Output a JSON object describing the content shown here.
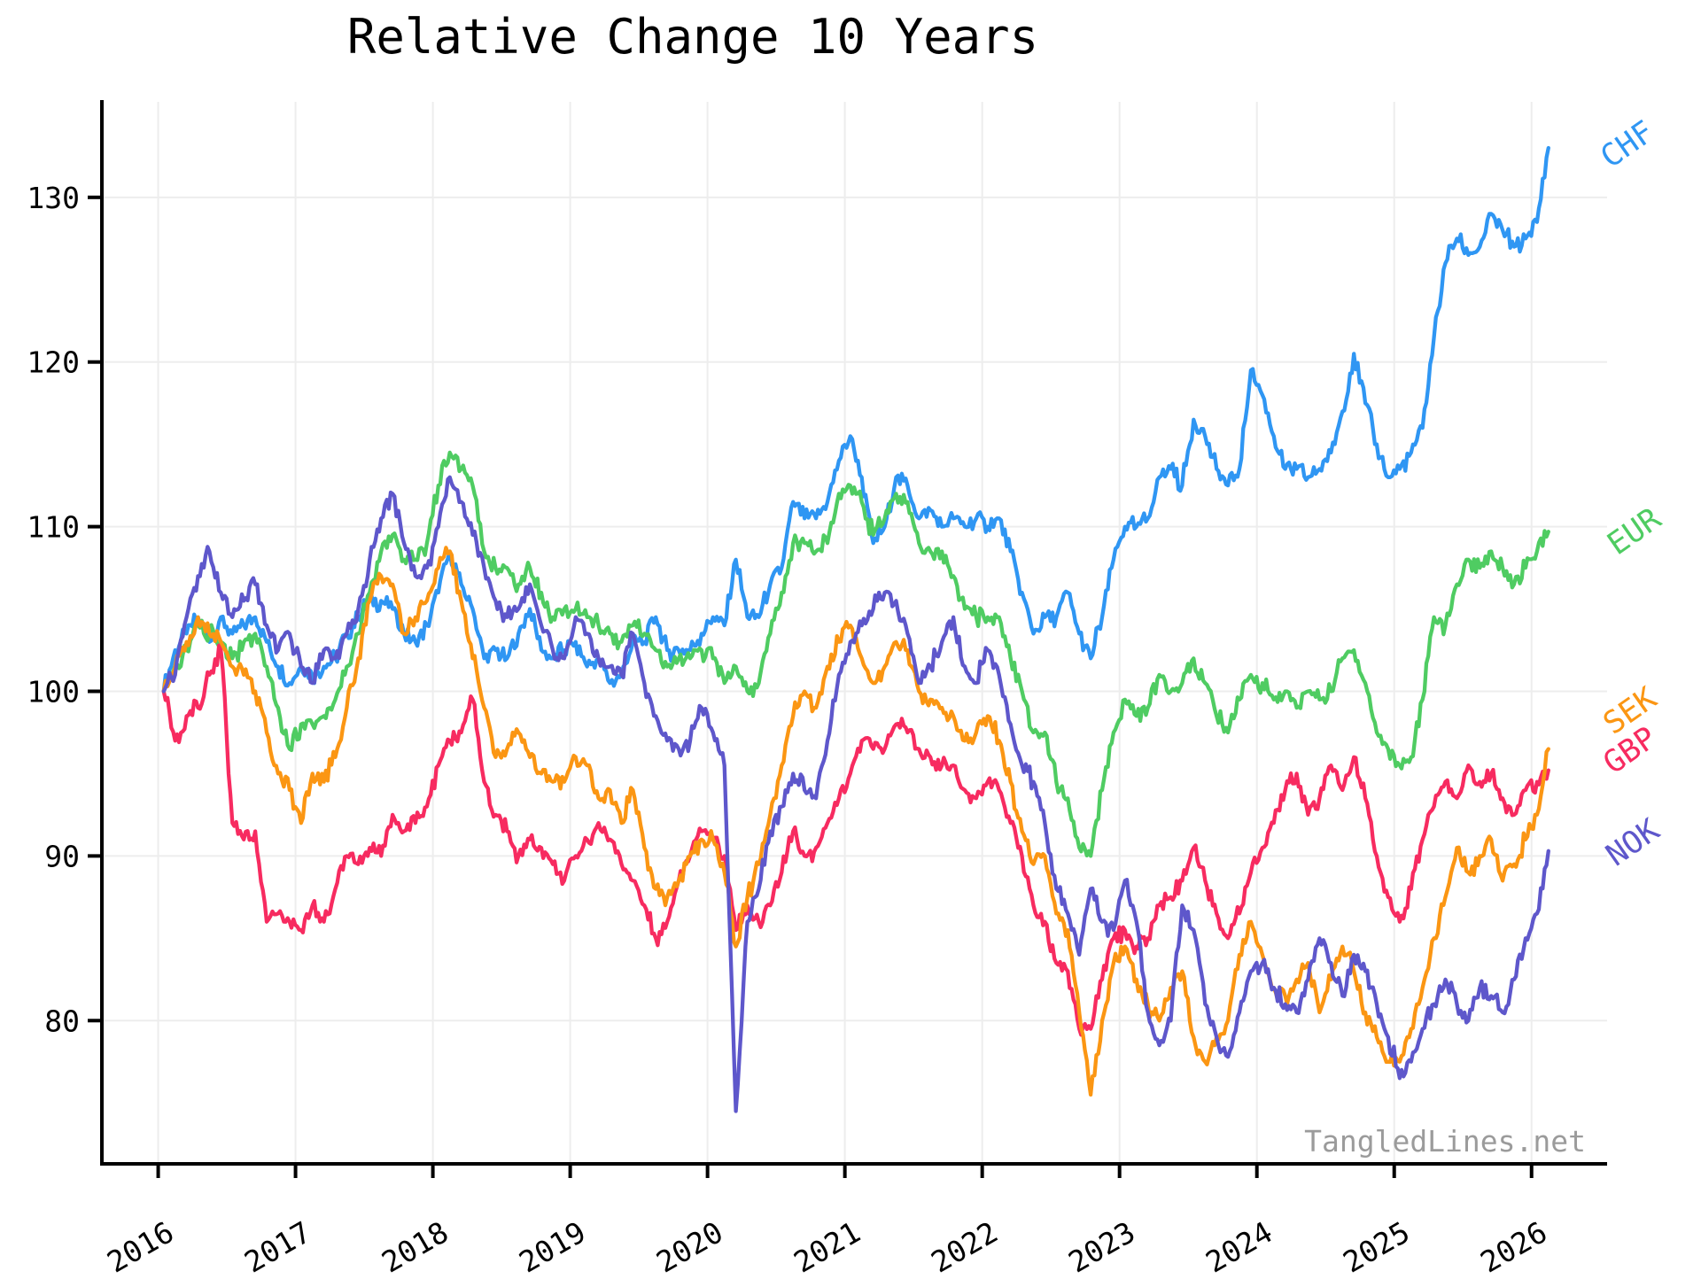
{
  "title": "Relative Change 10 Years",
  "watermark": "TangledLines.net",
  "chart_data": {
    "type": "line",
    "title": "Relative Change 10 Years",
    "xlabel": "",
    "ylabel": "",
    "x_start": 2016.04,
    "x_step": 0.08333,
    "x_ticks": [
      2016,
      2017,
      2018,
      2019,
      2020,
      2021,
      2022,
      2023,
      2024,
      2025,
      2026
    ],
    "y_ticks": [
      80,
      90,
      100,
      110,
      120,
      130
    ],
    "xlim": [
      2015.59,
      2026.55
    ],
    "ylim": [
      71.3,
      135.8
    ],
    "grid": true,
    "grid_color": "#ededed",
    "axis_color": "#000000",
    "legend_position": "right-edge-labels",
    "noise_amplitude": 0.7,
    "series": [
      {
        "name": "CHF",
        "color": "#2f96f3",
        "label_x": 2026.74,
        "label_y": 132.7,
        "values": [
          100,
          102.5,
          103.5,
          104.5,
          103,
          104.5,
          103.5,
          104,
          104.5,
          103,
          101.5,
          100.5,
          101.5,
          101,
          101.5,
          102,
          103.5,
          104.5,
          105.5,
          105.5,
          105,
          103.5,
          103,
          104,
          106,
          108.5,
          106.5,
          105,
          102,
          102.5,
          102,
          103.5,
          105,
          102.5,
          102,
          102.5,
          103,
          101.5,
          102,
          100.5,
          101,
          103,
          103,
          104.5,
          102.5,
          102.5,
          102.5,
          103.5,
          104.5,
          104,
          108,
          104.5,
          104.5,
          106.5,
          107.5,
          111.5,
          110.5,
          110.5,
          111.5,
          114,
          115.5,
          113,
          109,
          110,
          113,
          112.5,
          110.5,
          111,
          110,
          110.5,
          110,
          110.5,
          110,
          110.5,
          108.5,
          106,
          103.5,
          104.5,
          104.5,
          106,
          103.5,
          102,
          104.5,
          108,
          110,
          110,
          110.5,
          113,
          113.5,
          112.5,
          116.5,
          115.5,
          113.5,
          112.5,
          113.5,
          119.5,
          118,
          115.5,
          113.5,
          113.5,
          113,
          113.5,
          114.5,
          117,
          120.5,
          117.5,
          115,
          113,
          113.5,
          114.5,
          116,
          121.5,
          126,
          127.5,
          126.5,
          127,
          129,
          128,
          127,
          127.5,
          128.5,
          133
        ]
      },
      {
        "name": "EUR",
        "color": "#4fcc62",
        "label_x": 2026.79,
        "label_y": 109.2,
        "values": [
          100,
          101.5,
          102.5,
          104,
          103.5,
          103,
          102,
          103,
          103.5,
          101.5,
          99,
          96.5,
          98,
          98,
          98.5,
          99.5,
          101.5,
          103.5,
          106,
          108.5,
          109.5,
          108,
          108,
          109,
          112.5,
          114.5,
          113.5,
          112.5,
          108.5,
          107.5,
          107.5,
          106.5,
          107.5,
          106,
          104.5,
          105,
          105,
          104.5,
          104,
          103.5,
          103,
          104,
          103.5,
          102.5,
          101.5,
          102,
          102,
          102.5,
          102,
          100.5,
          101.5,
          100,
          100.5,
          103.5,
          106,
          109,
          109,
          108.5,
          109,
          112,
          112.5,
          111.5,
          109.5,
          110.5,
          112,
          111.5,
          109,
          108.5,
          108.5,
          107,
          105,
          104.5,
          104.5,
          104.5,
          102,
          100,
          97.5,
          97.5,
          94.5,
          93.5,
          90.5,
          90,
          94,
          97.5,
          99.5,
          98.5,
          99,
          101,
          100,
          100.5,
          102,
          100.5,
          98.5,
          97.5,
          99.5,
          101,
          100.5,
          99.5,
          100,
          99,
          100,
          99.5,
          100,
          102,
          102.5,
          100.5,
          97.5,
          96.5,
          95.5,
          96,
          99.5,
          104.5,
          104,
          106.5,
          108,
          107.5,
          108.5,
          107.5,
          106.5,
          107.5,
          108.5,
          109.7
        ]
      },
      {
        "name": "GBP",
        "color": "#f72b60",
        "label_x": 2026.76,
        "label_y": 95.9,
        "values": [
          100,
          97,
          98.5,
          99,
          101,
          102.5,
          92,
          91,
          91.5,
          86,
          86.5,
          86,
          85.5,
          87,
          86,
          88,
          90,
          89.5,
          90.5,
          90,
          92.5,
          91.5,
          92,
          93,
          95.5,
          97,
          97.5,
          99.5,
          94.5,
          92.5,
          91.5,
          90,
          91,
          90.5,
          89.5,
          88.5,
          90,
          91,
          92,
          91,
          89.5,
          88.5,
          87,
          85,
          86,
          88.5,
          90,
          91.5,
          91,
          90,
          85.5,
          87,
          86,
          87,
          89,
          91.5,
          90,
          90.5,
          92,
          93.5,
          95,
          97,
          96.5,
          96.5,
          98,
          97.5,
          96.5,
          96,
          95.5,
          95.5,
          94,
          93.5,
          94.5,
          94,
          92,
          90,
          87,
          86,
          83.5,
          83,
          79.5,
          79.5,
          82.5,
          85,
          85.5,
          84.5,
          85,
          87,
          87.5,
          88.5,
          90.5,
          88.5,
          86.5,
          85,
          86.5,
          89,
          90.5,
          92,
          94,
          95,
          92.5,
          93.5,
          95.5,
          94,
          96,
          93.5,
          90,
          87.5,
          86,
          88,
          91,
          93,
          94.5,
          93.5,
          95.5,
          94.5,
          95,
          93.5,
          92.5,
          94,
          94.5,
          95.2
        ]
      },
      {
        "name": "SEK",
        "color": "#fb9613",
        "label_x": 2026.76,
        "label_y": 98.3,
        "values": [
          100,
          101.5,
          103,
          104.5,
          103.5,
          103,
          101.5,
          101,
          100,
          97.5,
          95,
          94,
          92,
          95,
          94.5,
          96,
          99,
          102,
          105.5,
          107,
          106.5,
          103.5,
          104.5,
          105.5,
          107.5,
          108.5,
          105.5,
          102,
          99,
          96,
          96.5,
          97.5,
          96,
          95,
          94.5,
          94.5,
          96,
          95.5,
          93.5,
          94,
          92,
          94,
          90.5,
          88,
          87.5,
          88.5,
          90,
          91,
          91,
          89,
          84.5,
          87.5,
          89.5,
          92.5,
          95.5,
          98.5,
          100,
          99,
          101.5,
          103,
          104,
          102,
          100.5,
          101.5,
          103,
          102.5,
          100,
          99.5,
          99,
          98.5,
          97,
          97.5,
          98.5,
          97,
          94.5,
          91.5,
          89.5,
          90,
          86.5,
          85.5,
          80.5,
          75.5,
          80,
          83.5,
          84.5,
          82.5,
          81,
          80,
          82,
          83,
          79,
          77.5,
          79,
          80,
          84,
          86,
          84,
          82,
          81.5,
          82.5,
          83.5,
          80.5,
          82.5,
          84.5,
          83,
          80.5,
          79,
          77.5,
          77.5,
          79.5,
          82,
          85,
          87.5,
          90.5,
          89,
          90,
          91,
          88.5,
          89.5,
          91,
          92.5,
          96.5
        ]
      },
      {
        "name": "NOK",
        "color": "#5e57cb",
        "label_x": 2026.78,
        "label_y": 90.3,
        "values": [
          100,
          101,
          104.5,
          107,
          108.5,
          106,
          104.5,
          105.5,
          106.5,
          104,
          102.5,
          103.5,
          101.5,
          100.5,
          102.5,
          102,
          103.5,
          105,
          108,
          110.5,
          112,
          109,
          107,
          107.5,
          110,
          113,
          111.5,
          109.5,
          107.5,
          105.5,
          104.5,
          105,
          106.5,
          104,
          102.5,
          102,
          104.5,
          103.5,
          102,
          101.5,
          101,
          103.5,
          100.5,
          98.5,
          97,
          96.5,
          97,
          99,
          97.5,
          95.5,
          74.5,
          86,
          88,
          91.5,
          93,
          95,
          94,
          93.5,
          97,
          101,
          103,
          104,
          105,
          106,
          105.5,
          103.5,
          100.5,
          101.5,
          103,
          104.5,
          101.5,
          100.5,
          102.5,
          101,
          98,
          95.5,
          94.5,
          92,
          88,
          86.5,
          84,
          88,
          86,
          85.5,
          88.5,
          86,
          80.5,
          78.5,
          80,
          87,
          85.5,
          81,
          79,
          77.8,
          80.5,
          83,
          83.5,
          82,
          81,
          80.5,
          82.5,
          85,
          83.5,
          81.5,
          84,
          83,
          81,
          79,
          76.5,
          77.5,
          79.5,
          81,
          82.5,
          81,
          80,
          82,
          81.5,
          80.5,
          82.5,
          85,
          86.5,
          90.3
        ]
      }
    ]
  }
}
